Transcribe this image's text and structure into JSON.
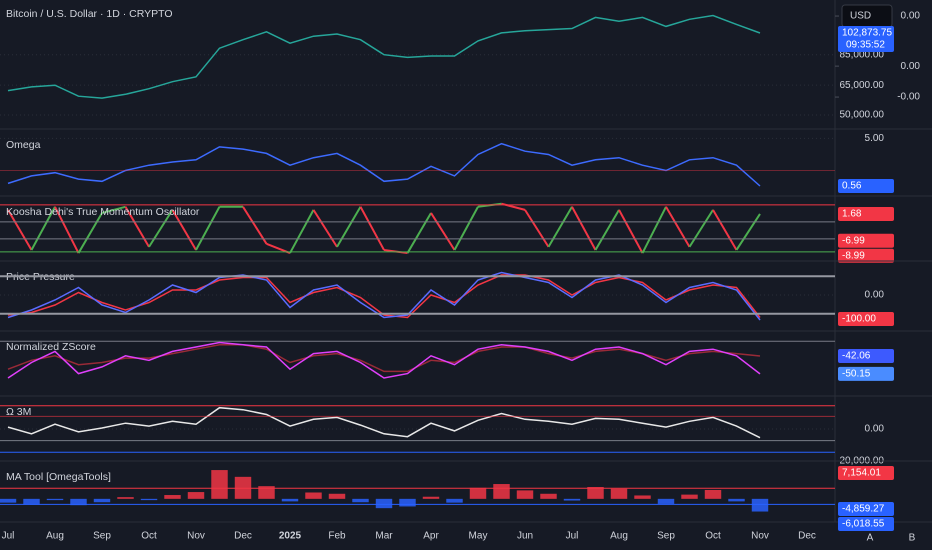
{
  "header": {
    "title": "Bitcoin / U.S. Dollar · 1D · CRYPTO",
    "currency": "USD",
    "time_label": "09:35:52",
    "clipped_label": "20,000.00",
    "buttons": [
      "A",
      "B"
    ]
  },
  "chart_data": [
    {
      "type": "line",
      "log": true,
      "ylim": [
        44600,
        131600
      ],
      "yticks": [
        {
          "value": 50000,
          "label": "50,000.00"
        },
        {
          "value": 65000,
          "label": "65,000.00"
        },
        {
          "value": 85000,
          "label": "85,000.00"
        }
      ],
      "y2lim": [
        -0.0036,
        0.00475
      ],
      "y2ticks": [
        {
          "value": 0.004,
          "label": "0.00"
        },
        {
          "value": 0.0006,
          "label": "0.00"
        },
        {
          "value": -0.0015,
          "label": "-0.00"
        }
      ],
      "series": [
        {
          "color": "#26a69a",
          "values": [
            62000,
            64000,
            65000,
            59000,
            58000,
            60000,
            63000,
            67000,
            70000,
            90000,
            97000,
            104000,
            94000,
            100000,
            102000,
            97000,
            85000,
            83000,
            84000,
            84000,
            96000,
            103000,
            105000,
            106000,
            107000,
            118000,
            114000,
            118000,
            109000,
            116000,
            120000,
            111000,
            102873.75,
            null,
            null
          ]
        }
      ],
      "badges": [
        {
          "value": 102873.75,
          "label": "102,873.75",
          "color": "#2962ff"
        }
      ]
    },
    {
      "type": "line",
      "title": "Omega",
      "ylim": [
        0,
        5.5
      ],
      "yticks": [
        {
          "value": 5,
          "label": "5.00"
        }
      ],
      "hlines": [
        {
          "value": 2,
          "color": "#f2364566"
        }
      ],
      "series": [
        {
          "color": "#3d6bff",
          "values": [
            0.8,
            1.5,
            1.8,
            1.2,
            1.0,
            2.0,
            2.5,
            2.8,
            3.0,
            4.2,
            4.0,
            3.6,
            2.5,
            3.2,
            3.6,
            2.5,
            1.0,
            1.2,
            2.4,
            1.5,
            3.5,
            4.5,
            3.8,
            3.5,
            2.5,
            3.0,
            3.2,
            2.5,
            2.0,
            3.0,
            3.2,
            2.5,
            0.56,
            null,
            null
          ]
        }
      ],
      "badges": [
        {
          "value": 0.56,
          "color": "#2962ff"
        }
      ]
    },
    {
      "type": "oscillator",
      "title": "Koosha Dehi's True Momentum Oscillator",
      "ylim": [
        -12.6,
        6.2
      ],
      "yticks": [],
      "hlines": [
        {
          "value": 4.6,
          "color": "#f23645"
        },
        {
          "value": -0.9,
          "color": "#787b86"
        },
        {
          "value": -6.4,
          "color": "#787b86"
        },
        {
          "value": -10.6,
          "color": "#4caf50"
        }
      ],
      "colors": {
        "up": "#4caf50",
        "down": "#f23645"
      },
      "series": [
        {
          "values": [
            3,
            -10,
            4,
            -11,
            2,
            4,
            -9,
            3,
            -10,
            4,
            4,
            -8,
            -11,
            3,
            -9,
            4,
            -10,
            -11,
            2,
            -10,
            4,
            5,
            3,
            -9,
            4,
            -10,
            3,
            -11,
            4,
            -9,
            3,
            -10,
            1.68,
            null,
            null
          ]
        }
      ],
      "badges": [
        {
          "value": 1.68,
          "color": "#f23645"
        },
        {
          "value": -6.99,
          "color": "#f23645"
        },
        {
          "value": -8.99,
          "color": "#f23645"
        }
      ]
    },
    {
      "type": "line",
      "title": "Price Pressure",
      "ylim": [
        -120,
        120
      ],
      "yticks": [
        {
          "value": 0,
          "label": "0.00"
        }
      ],
      "hlines": [
        {
          "value": 75,
          "color": "#9598a1"
        },
        {
          "value": -75,
          "color": "#9598a1"
        }
      ],
      "series": [
        {
          "color": "#f23645",
          "values": [
            -80,
            -70,
            -40,
            10,
            -30,
            -60,
            -30,
            20,
            20,
            60,
            70,
            70,
            -30,
            10,
            30,
            -10,
            -80,
            -90,
            0,
            -30,
            40,
            80,
            80,
            60,
            0,
            50,
            70,
            50,
            -20,
            20,
            40,
            30,
            -90,
            null,
            null
          ]
        },
        {
          "color": "#5b6cff",
          "values": [
            -90,
            -60,
            -20,
            30,
            -40,
            -70,
            -20,
            40,
            10,
            70,
            80,
            60,
            -50,
            20,
            40,
            -30,
            -90,
            -80,
            20,
            -40,
            60,
            90,
            70,
            50,
            -10,
            60,
            80,
            40,
            -30,
            30,
            50,
            20,
            -100,
            null,
            null
          ]
        }
      ],
      "badges": [
        {
          "value": -100,
          "label": "-100.00",
          "color": "#f23645"
        }
      ]
    },
    {
      "type": "line",
      "title": "Normalized ZScore",
      "ylim": [
        -58.3,
        -32.6
      ],
      "yticks": [],
      "hlines": [
        {
          "value": -35.4,
          "color": "#787b86"
        }
      ],
      "series": [
        {
          "color": "#f2364599",
          "values": [
            -48,
            -44,
            -42,
            -46,
            -45,
            -43,
            -43,
            -41,
            -39,
            -37,
            -37,
            -39,
            -45,
            -42,
            -41,
            -44,
            -49,
            -49,
            -44,
            -45,
            -40,
            -38,
            -38,
            -41,
            -43,
            -40,
            -39,
            -41,
            -44,
            -41,
            -40,
            -41,
            -42.06,
            null,
            null
          ]
        },
        {
          "color": "#e040fb",
          "values": [
            -52,
            -45,
            -40,
            -50,
            -47,
            -42,
            -44,
            -40,
            -38,
            -36,
            -37,
            -38,
            -48,
            -41,
            -40,
            -45,
            -52,
            -50,
            -42,
            -46,
            -39,
            -37,
            -38,
            -40,
            -44,
            -39,
            -38,
            -41,
            -46,
            -40,
            -39,
            -42,
            -50.15,
            null,
            null
          ]
        }
      ],
      "badges": [
        {
          "value": -42.06,
          "color": "#3d5afe"
        },
        {
          "value": -50.15,
          "color": "#4a8cff"
        }
      ]
    },
    {
      "type": "line",
      "title": "Ω 3M",
      "ylim": [
        -3,
        3
      ],
      "yticks": [
        {
          "value": 0,
          "label": "0.00"
        }
      ],
      "hlines": [
        {
          "value": 2.4,
          "color": "#f23645"
        },
        {
          "value": 1.3,
          "color": "#f2364599"
        },
        {
          "value": -1.2,
          "color": "#d1d4dc88"
        },
        {
          "value": -2.4,
          "color": "#2962ff"
        }
      ],
      "series": [
        {
          "color": "#e8e8e8",
          "values": [
            0.2,
            -0.5,
            0.5,
            -0.3,
            0.1,
            0.6,
            0.3,
            0.8,
            0.5,
            2.2,
            2.0,
            1.5,
            0.3,
            1.0,
            1.2,
            0.4,
            -0.5,
            -0.8,
            0.6,
            -0.2,
            0.9,
            1.6,
            1.0,
            0.8,
            0.5,
            1.1,
            1.0,
            0.6,
            0.2,
            0.8,
            1.2,
            0.3,
            -0.9,
            null,
            null
          ]
        }
      ],
      "badges": []
    },
    {
      "type": "bar",
      "title": "MA Tool [OmegaTools]",
      "ylim": [
        -5000,
        8000
      ],
      "yticks": [],
      "hlines": [
        {
          "value": 2500,
          "color": "#f23645"
        },
        {
          "value": -1300,
          "color": "#2962ff"
        }
      ],
      "colors": {
        "up": "#f23645",
        "down": "#2962ff"
      },
      "categories": [
        "Jul",
        null,
        "Aug",
        null,
        "Sep",
        null,
        "Oct",
        null,
        "Nov",
        null,
        "Dec",
        null,
        "2025",
        null,
        "Feb",
        null,
        "Mar",
        null,
        "Apr",
        null,
        "May",
        null,
        "Jun",
        null,
        "Jul",
        null,
        "Aug",
        null,
        "Sep",
        null,
        "Oct",
        null,
        "Nov",
        null,
        "Dec"
      ],
      "series": [
        {
          "values": [
            -900,
            -1400,
            -300,
            -1500,
            -800,
            400,
            -300,
            900,
            1600,
            6800,
            5200,
            3000,
            -600,
            1500,
            1200,
            -800,
            -2200,
            -1800,
            500,
            -900,
            2600,
            3500,
            2000,
            1200,
            -400,
            2800,
            2400,
            800,
            -1200,
            1000,
            2100,
            -600,
            -3000,
            null,
            null
          ]
        }
      ],
      "badges": [
        {
          "value": 7154.01,
          "label": "7,154.01",
          "color": "#f23645"
        },
        {
          "value": -4859.27,
          "label": "-4,859.27",
          "color": "#2962ff"
        },
        {
          "value": -6018.55,
          "label": "-6,018.55",
          "color": "#2962ff"
        }
      ]
    }
  ]
}
